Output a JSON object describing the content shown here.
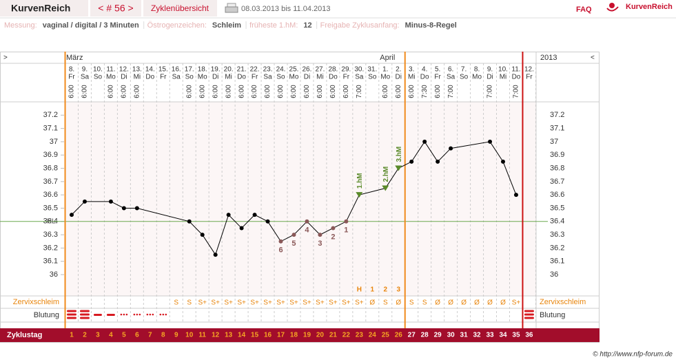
{
  "header": {
    "brand": "KurvenReich",
    "cycle_nav": "< # 56 >",
    "overview": "Zyklenübersicht",
    "date_range": "08.03.2013 bis 11.04.2013",
    "faq": "FAQ",
    "logo": "KurvenReich"
  },
  "settings": [
    {
      "label": "Messung:",
      "value": "vaginal / digital / 3 Minuten"
    },
    {
      "label": "Östrogenzeichen:",
      "value": "Schleim"
    },
    {
      "label": "früheste 1.hM:",
      "value": "12"
    },
    {
      "label": "Freigabe Zyklusanfang:",
      "value": "Minus-8-Regel"
    }
  ],
  "chart_data": {
    "type": "line",
    "nav_prev": ">",
    "nav_next": "<",
    "year": "2013",
    "months": [
      {
        "label": "März",
        "day": 1
      },
      {
        "label": "April",
        "day": 25
      }
    ],
    "dates": [
      "8.",
      "9.",
      "10.",
      "11.",
      "12.",
      "13.",
      "14.",
      "15.",
      "16.",
      "17.",
      "18.",
      "19.",
      "20.",
      "21.",
      "22.",
      "23.",
      "24.",
      "25.",
      "26.",
      "27.",
      "28.",
      "29.",
      "30.",
      "31.",
      "1.",
      "2.",
      "3.",
      "4.",
      "5.",
      "6.",
      "7.",
      "8.",
      "9.",
      "10.",
      "11.",
      "12."
    ],
    "weekdays": [
      "Fr",
      "Sa",
      "So",
      "Mo",
      "Di",
      "Mi",
      "Do",
      "Fr",
      "Sa",
      "So",
      "Mo",
      "Di",
      "Mi",
      "Do",
      "Fr",
      "Sa",
      "So",
      "Mo",
      "Di",
      "Mi",
      "Do",
      "Fr",
      "Sa",
      "So",
      "Mo",
      "Di",
      "Mi",
      "Do",
      "Fr",
      "Sa",
      "So",
      "Mo",
      "Di",
      "Mi",
      "Do",
      "Fr"
    ],
    "times": [
      "6:00",
      "6:00",
      null,
      "6:00",
      "6:00",
      "6:00",
      null,
      null,
      null,
      "6:00",
      "6:00",
      "6:00",
      "6:00",
      "6:00",
      "6:00",
      "6:00",
      "6:00",
      "6:00",
      "6:00",
      "6:00",
      "6:00",
      "6:00",
      "7:00",
      null,
      "6:00",
      "6:00",
      "6:00",
      "7:30",
      "6:00",
      "7:00",
      null,
      null,
      "7:00",
      null,
      "7:00",
      null
    ],
    "cycle_day_label": "Zyklustag",
    "cycle_days": [
      1,
      2,
      3,
      4,
      5,
      6,
      7,
      8,
      9,
      10,
      11,
      12,
      13,
      14,
      15,
      16,
      17,
      18,
      19,
      20,
      21,
      22,
      23,
      24,
      25,
      26,
      27,
      28,
      29,
      30,
      31,
      32,
      33,
      34,
      35,
      36
    ],
    "x": [
      1,
      2,
      4,
      5,
      6,
      10,
      11,
      12,
      13,
      14,
      15,
      16,
      17,
      18,
      19,
      20,
      21,
      22,
      23,
      25,
      26,
      27,
      28,
      29,
      30,
      33,
      34,
      35
    ],
    "values": [
      36.45,
      36.55,
      36.55,
      36.5,
      36.5,
      36.4,
      36.3,
      36.15,
      36.45,
      36.35,
      36.45,
      36.4,
      36.25,
      36.3,
      36.4,
      36.3,
      36.35,
      36.4,
      36.6,
      36.65,
      36.8,
      36.85,
      37.0,
      36.85,
      36.95,
      37.0,
      36.85,
      36.6
    ],
    "color": "#000000",
    "low_color": "#8a5858",
    "hm_color": "#5a8a2a",
    "ylim": [
      35.85,
      37.3
    ],
    "yticks": [
      36,
      36.1,
      36.2,
      36.3,
      36.4,
      36.5,
      36.6,
      36.7,
      36.8,
      36.9,
      37,
      37.1,
      37.2
    ],
    "coverline": {
      "label": "HL:",
      "value": 36.4,
      "color": "#6aa84f"
    },
    "hm_markers": [
      {
        "label": "1.hM",
        "day": 23
      },
      {
        "label": "2.hM",
        "day": 25
      },
      {
        "label": "3.hM",
        "day": 26
      }
    ],
    "low_labels": [
      {
        "label": "6",
        "day": 17
      },
      {
        "label": "5",
        "day": 18
      },
      {
        "label": "4",
        "day": 19
      },
      {
        "label": "3",
        "day": 20
      },
      {
        "label": "2",
        "day": 21
      },
      {
        "label": "1",
        "day": 22
      }
    ],
    "peak_labels": [
      {
        "label": "H",
        "day": 23
      },
      {
        "label": "1",
        "day": 24
      },
      {
        "label": "2",
        "day": 25
      },
      {
        "label": "3",
        "day": 26
      }
    ],
    "mucus_label": "Zervixschleim",
    "mucus": [
      null,
      null,
      null,
      null,
      null,
      null,
      null,
      null,
      "S",
      "S",
      "S+",
      "S+",
      "S+",
      "S+",
      "S+",
      "S+",
      "S+",
      "S+",
      "S+",
      "S+",
      "S+",
      "S+",
      "S+",
      "Ø",
      "S",
      "Ø",
      "S",
      "S",
      "Ø",
      "Ø",
      "Ø",
      "Ø",
      "Ø",
      "Ø",
      "S+",
      null
    ],
    "bleeding_label": "Blutung",
    "bleeding": [
      3,
      3,
      2,
      2,
      1,
      1,
      1,
      1,
      null,
      null,
      null,
      null,
      null,
      null,
      null,
      null,
      null,
      null,
      null,
      null,
      null,
      null,
      null,
      null,
      null,
      null,
      null,
      null,
      null,
      null,
      null,
      null,
      null,
      null,
      null,
      3
    ],
    "phase_lines": [
      {
        "after_day": 0,
        "color": "#f08a1c"
      },
      {
        "after_day": 26,
        "color": "#f08a1c"
      },
      {
        "after_day": 35,
        "color": "#cc1111"
      }
    ]
  },
  "footer": "© http://www.nfp-forum.de"
}
